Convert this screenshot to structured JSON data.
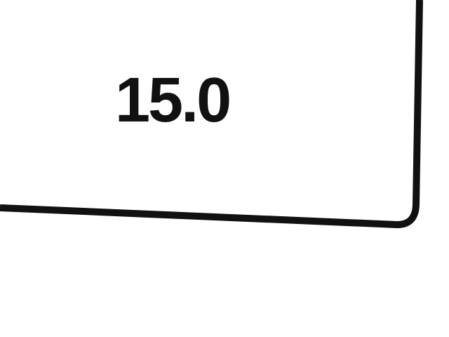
{
  "display": {
    "value": "15.0"
  },
  "colors": {
    "background": "#ffffff",
    "ink": "#111111"
  }
}
